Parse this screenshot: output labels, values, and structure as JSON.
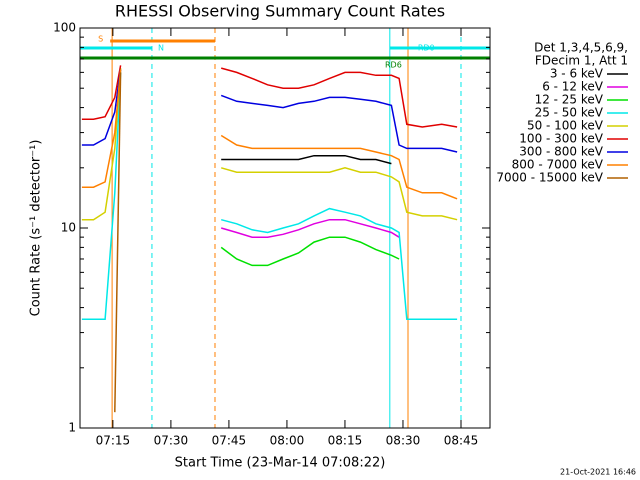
{
  "chart_data": {
    "type": "line",
    "title": "RHESSI Observing Summary Count Rates",
    "x_label": "Start Time (23-Mar-14 07:08:22)",
    "y_label": "Count Rate (s⁻¹ detector⁻¹)",
    "legend_header": [
      "Det 1,3,4,5,6,9,",
      "FDecim 1, Att 1"
    ],
    "footer": "21-Oct-2021 16:46",
    "log_scale": true,
    "xlim": [
      426.5,
      532.5
    ],
    "xticks": [
      {
        "value": 435,
        "label": "07:15"
      },
      {
        "value": 450,
        "label": "07:30"
      },
      {
        "value": 465,
        "label": "07:45"
      },
      {
        "value": 480,
        "label": "08:00"
      },
      {
        "value": 495,
        "label": "08:15"
      },
      {
        "value": 510,
        "label": "08:30"
      },
      {
        "value": 525,
        "label": "08:45"
      }
    ],
    "ylim": [
      1,
      100
    ],
    "yticks": [
      1,
      10,
      100
    ],
    "x": [
      427,
      430,
      433,
      435.5,
      437,
      450,
      463,
      467,
      471,
      475,
      479,
      483,
      487,
      491,
      495,
      499,
      503,
      507,
      509,
      511,
      515,
      520,
      524
    ],
    "series": [
      {
        "name": "3 - 6 keV",
        "color": "#000000",
        "values": [
          null,
          null,
          null,
          null,
          null,
          null,
          22,
          22,
          22,
          22,
          22,
          22,
          23,
          23,
          23,
          22,
          22,
          21,
          null,
          null,
          null,
          null,
          null
        ]
      },
      {
        "name": "6 - 12 keV",
        "color": "#e000e0",
        "values": [
          null,
          null,
          null,
          null,
          null,
          null,
          10,
          9.5,
          9,
          9,
          9.3,
          9.8,
          10.5,
          11,
          11,
          10.5,
          10,
          9.5,
          9,
          null,
          null,
          null,
          null
        ]
      },
      {
        "name": "12 - 25 keV",
        "color": "#00e000",
        "values": [
          null,
          null,
          null,
          null,
          null,
          null,
          8,
          7,
          6.5,
          6.5,
          7,
          7.5,
          8.5,
          9,
          9,
          8.5,
          7.8,
          7.3,
          7,
          null,
          null,
          null,
          null
        ]
      },
      {
        "name": "25 - 50 keV",
        "color": "#00e8e8",
        "values": [
          3.5,
          3.5,
          3.5,
          15,
          60,
          null,
          11,
          10.5,
          9.8,
          9.5,
          10,
          10.5,
          11.5,
          12.5,
          12,
          11.5,
          10.5,
          10,
          9.5,
          3.5,
          3.5,
          3.5,
          3.5
        ]
      },
      {
        "name": "50 - 100 keV",
        "color": "#d4d000",
        "values": [
          11,
          11,
          12,
          25,
          63,
          null,
          20,
          19,
          19,
          19,
          19,
          19,
          19,
          19,
          20,
          19,
          19,
          18,
          17,
          12,
          11.5,
          11.5,
          11
        ]
      },
      {
        "name": "100 - 300 keV",
        "color": "#e00000",
        "values": [
          35,
          35,
          36,
          45,
          65,
          null,
          63,
          60,
          56,
          52,
          50,
          50,
          52,
          56,
          60,
          60,
          58,
          58,
          56,
          33,
          32,
          33,
          32
        ]
      },
      {
        "name": "300 - 800 keV",
        "color": "#0000e0",
        "values": [
          26,
          26,
          28,
          38,
          62,
          null,
          46,
          43,
          42,
          41,
          40,
          42,
          43,
          45,
          45,
          44,
          43,
          41,
          26,
          25,
          25,
          25,
          24
        ]
      },
      {
        "name": "800 - 7000 keV",
        "color": "#ff8000",
        "values": [
          16,
          16,
          17,
          30,
          62,
          null,
          29,
          26,
          25,
          25,
          25,
          25,
          25,
          25,
          25,
          25,
          24,
          23,
          22,
          16,
          15,
          15,
          14
        ]
      },
      {
        "name": "7000 - 15000 keV",
        "color": "#b06000",
        "values": [
          null,
          null,
          null,
          1.2,
          60,
          null,
          null,
          null,
          null,
          null,
          null,
          null,
          null,
          null,
          null,
          null,
          null,
          null,
          null,
          null,
          null,
          null,
          null
        ]
      }
    ],
    "flags": [
      {
        "label": "S",
        "color": "#ff8000",
        "start": 434.3,
        "end": 461.4
      },
      {
        "label": "N",
        "color": "#00e8e8",
        "start": 426.5,
        "end": 445.1
      },
      {
        "label": "RD0",
        "color": "#00e8e8",
        "start": 506.6,
        "end": 532.5
      },
      {
        "label": "RD6",
        "color": "#008000",
        "start": 426.5,
        "end": 532.5
      }
    ],
    "markers": [
      {
        "x": 434.8,
        "color": "#ff8000",
        "dashed": false
      },
      {
        "x": 445.1,
        "color": "#00e8e8",
        "dashed": true
      },
      {
        "x": 461.4,
        "color": "#ff8000",
        "dashed": true
      },
      {
        "x": 506.6,
        "color": "#00e8e8",
        "dashed": false
      },
      {
        "x": 511.3,
        "color": "#ff8000",
        "dashed": false
      },
      {
        "x": 525,
        "color": "#00e8e8",
        "dashed": true
      }
    ]
  }
}
